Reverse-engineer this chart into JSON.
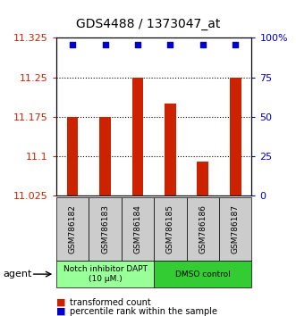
{
  "title": "GDS4488 / 1373047_at",
  "samples": [
    "GSM786182",
    "GSM786183",
    "GSM786184",
    "GSM786185",
    "GSM786186",
    "GSM786187"
  ],
  "bar_values": [
    11.175,
    11.175,
    11.25,
    11.2,
    11.09,
    11.25
  ],
  "percentile_y": [
    96,
    96,
    96,
    96,
    96,
    96
  ],
  "bar_bottom": 11.025,
  "ylim_left": [
    11.025,
    11.325
  ],
  "ylim_right": [
    0,
    100
  ],
  "yticks_left": [
    11.025,
    11.1,
    11.175,
    11.25,
    11.325
  ],
  "yticks_right": [
    0,
    25,
    50,
    75,
    100
  ],
  "ytick_labels_left": [
    "11.025",
    "11.1",
    "11.175",
    "11.25",
    "11.325"
  ],
  "ytick_labels_right": [
    "0",
    "25",
    "50",
    "75",
    "100%"
  ],
  "bar_color": "#cc2200",
  "dot_color": "#0000cc",
  "agent_groups": [
    {
      "label": "Notch inhibitor DAPT\n(10 μM.)",
      "start": 0,
      "end": 3,
      "color": "#99ff99"
    },
    {
      "label": "DMSO control",
      "start": 3,
      "end": 6,
      "color": "#33cc33"
    }
  ],
  "legend": [
    {
      "color": "#cc2200",
      "label": "transformed count"
    },
    {
      "color": "#0000cc",
      "label": "percentile rank within the sample"
    }
  ],
  "agent_label": "agent",
  "left_tick_color": "#cc2200",
  "right_tick_color": "#0000cc",
  "grid_yticks": [
    11.1,
    11.175,
    11.25
  ]
}
